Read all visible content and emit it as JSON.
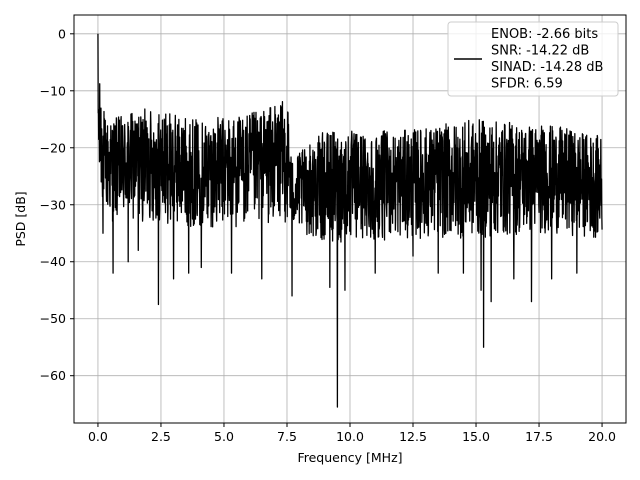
{
  "chart_data": {
    "type": "line",
    "title": "",
    "xlabel": "Frequency [MHz]",
    "ylabel": "PSD [dB]",
    "xlim": [
      -0.95,
      20.95
    ],
    "ylim": [
      -68.3,
      3.3
    ],
    "grid": true,
    "xticks": [
      0.0,
      2.5,
      5.0,
      7.5,
      10.0,
      12.5,
      15.0,
      17.5,
      20.0
    ],
    "xtick_labels": [
      "0.0",
      "2.5",
      "5.0",
      "7.5",
      "10.0",
      "12.5",
      "15.0",
      "17.5",
      "20.0"
    ],
    "yticks": [
      0,
      -10,
      -20,
      -30,
      -40,
      -50,
      -60
    ],
    "ytick_labels": [
      "0",
      "−10",
      "−20",
      "−30",
      "−40",
      "−50",
      "−60"
    ],
    "legend_position": "top-right",
    "line_color": "#000000",
    "series": [
      {
        "name": "",
        "x_range": [
          0,
          20
        ],
        "envelope_upper": [
          [
            0.0,
            0
          ],
          [
            0.05,
            -8
          ],
          [
            0.15,
            -10
          ],
          [
            0.3,
            -15
          ],
          [
            2.0,
            -13
          ],
          [
            4.0,
            -15
          ],
          [
            6.0,
            -14
          ],
          [
            7.3,
            -12
          ],
          [
            7.5,
            -10
          ],
          [
            7.7,
            -22
          ],
          [
            9.0,
            -17
          ],
          [
            12.0,
            -17
          ],
          [
            15.0,
            -15
          ],
          [
            18.0,
            -16
          ],
          [
            20.0,
            -18
          ]
        ],
        "envelope_lower": [
          [
            0.0,
            -28
          ],
          [
            0.5,
            -33
          ],
          [
            2.0,
            -33
          ],
          [
            4.0,
            -34
          ],
          [
            6.0,
            -34
          ],
          [
            7.3,
            -33
          ],
          [
            9.0,
            -37
          ],
          [
            12.0,
            -36
          ],
          [
            15.0,
            -36
          ],
          [
            18.0,
            -35
          ],
          [
            20.0,
            -36
          ]
        ],
        "dips": [
          [
            0.2,
            -35
          ],
          [
            0.6,
            -42
          ],
          [
            1.2,
            -40
          ],
          [
            1.6,
            -38
          ],
          [
            2.4,
            -47.5
          ],
          [
            3.0,
            -43
          ],
          [
            3.6,
            -42
          ],
          [
            4.1,
            -41
          ],
          [
            5.3,
            -42
          ],
          [
            6.5,
            -43
          ],
          [
            7.7,
            -46
          ],
          [
            9.2,
            -44.5
          ],
          [
            9.5,
            -65.5
          ],
          [
            9.8,
            -45
          ],
          [
            11.0,
            -42
          ],
          [
            12.5,
            -39
          ],
          [
            13.5,
            -42
          ],
          [
            14.5,
            -42
          ],
          [
            15.2,
            -45
          ],
          [
            15.3,
            -55
          ],
          [
            15.6,
            -47
          ],
          [
            16.5,
            -43
          ],
          [
            17.2,
            -47
          ],
          [
            18.0,
            -43
          ],
          [
            19.0,
            -42
          ]
        ]
      }
    ],
    "legend": {
      "lines": [
        "ENOB: -2.66 bits",
        "SNR: -14.22 dB",
        "SINAD: -14.28 dB",
        "SFDR: 6.59"
      ]
    }
  }
}
